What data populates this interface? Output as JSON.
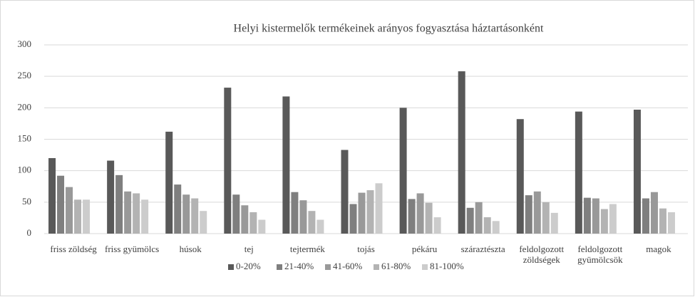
{
  "chart_data": {
    "type": "bar",
    "title": "Helyi kistermelők termékeinek arányos fogyasztása háztartásonként",
    "categories": [
      "friss zöldség",
      "friss gyümölcs",
      "húsok",
      "tej",
      "tejtermék",
      "tojás",
      "pékáru",
      "száraztészta",
      "feldolgozott zöldségek",
      "feldolgozott gyümölcsök",
      "magok"
    ],
    "series": [
      {
        "name": "0-20%",
        "color": "#595959",
        "values": [
          120,
          116,
          162,
          232,
          218,
          133,
          200,
          258,
          182,
          194,
          197
        ]
      },
      {
        "name": "21-40%",
        "color": "#7f7f7f",
        "values": [
          92,
          93,
          78,
          62,
          66,
          47,
          55,
          41,
          61,
          57,
          56
        ]
      },
      {
        "name": "41-60%",
        "color": "#999999",
        "values": [
          74,
          67,
          62,
          45,
          53,
          65,
          64,
          50,
          67,
          56,
          66
        ]
      },
      {
        "name": "61-80%",
        "color": "#b3b3b3",
        "values": [
          54,
          64,
          56,
          34,
          36,
          69,
          49,
          26,
          50,
          39,
          40
        ]
      },
      {
        "name": "81-100%",
        "color": "#cccccc",
        "values": [
          54,
          54,
          36,
          22,
          22,
          80,
          26,
          20,
          33,
          47,
          34
        ]
      }
    ],
    "ylim": [
      0,
      300
    ],
    "yticks": [
      0,
      50,
      100,
      150,
      200,
      250,
      300
    ],
    "grid": true,
    "legend": "bottom"
  }
}
